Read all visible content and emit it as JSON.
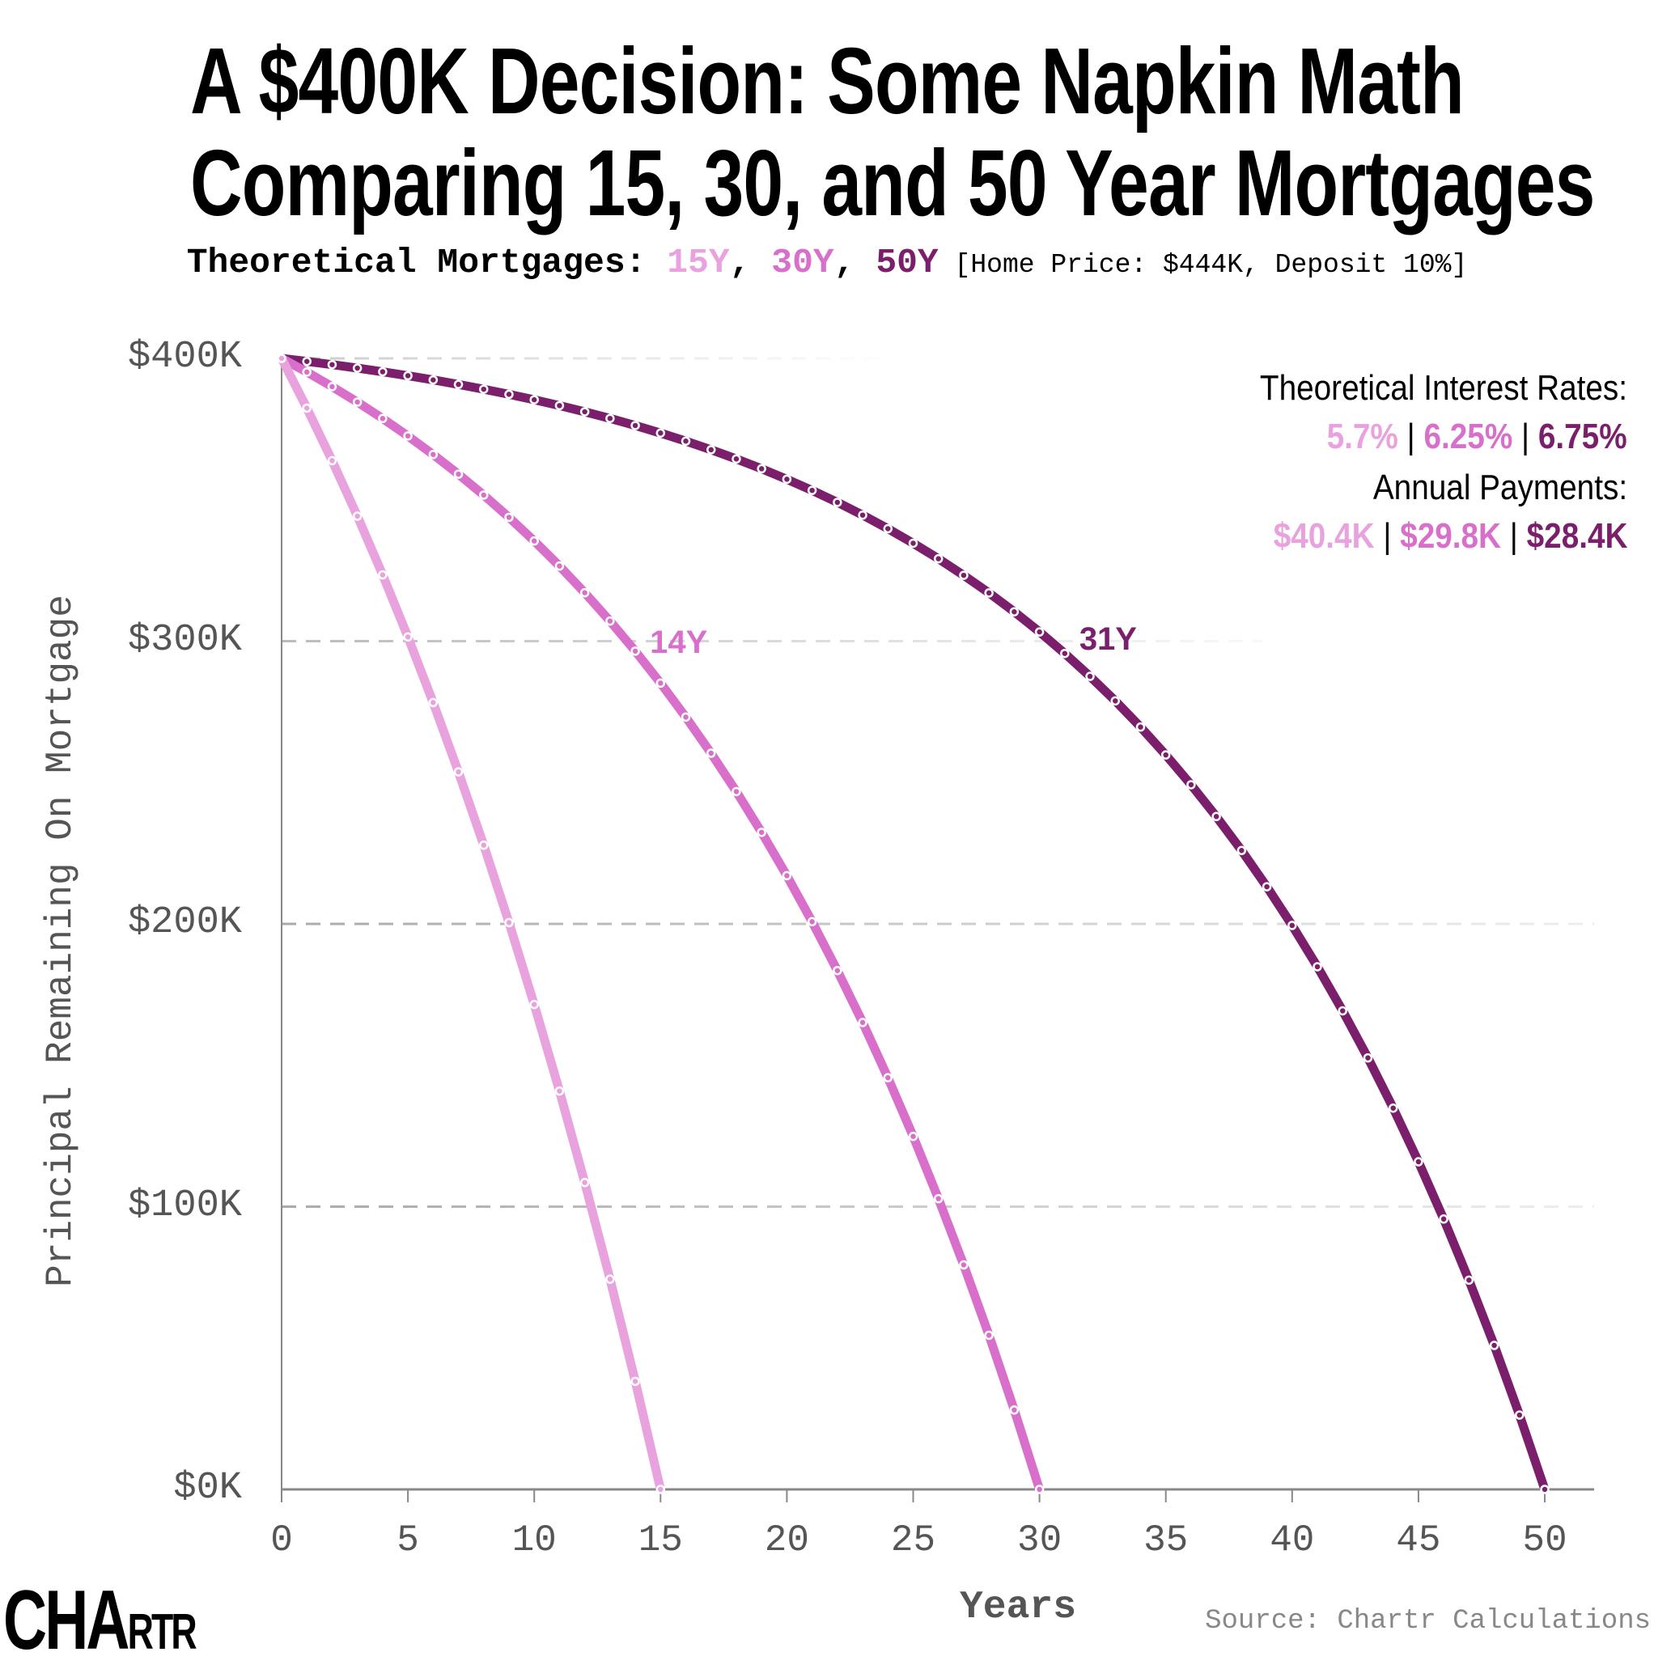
{
  "header": {
    "title_line1": "A $400K Decision: Some Napkin Math",
    "title_line2": "Comparing 15, 30, and 50 Year Mortgages",
    "subtitle_prefix": "Theoretical Mortgages: ",
    "subtitle_15": "15Y",
    "subtitle_sep1": ", ",
    "subtitle_30": "30Y",
    "subtitle_sep2": ", ",
    "subtitle_50": "50Y",
    "subtitle_note": " [Home Price: $444K, Deposit 10%]"
  },
  "legend": {
    "rates_label": "Theoretical Interest Rates:",
    "rates": [
      "5.7%",
      "6.25%",
      "6.75%"
    ],
    "payments_label": "Annual Payments:",
    "payments": [
      "$40.4K",
      "$29.8K",
      "$28.4K"
    ],
    "separator": "|"
  },
  "footer": {
    "source": "Source: Chartr Calculations",
    "logo_text": "CHARTR"
  },
  "chart_data": {
    "type": "line",
    "xlabel": "Years",
    "ylabel": "Principal Remaining On Mortgage",
    "xlim": [
      0,
      52
    ],
    "ylim": [
      0,
      400000
    ],
    "xticks": [
      "0",
      "5",
      "10",
      "15",
      "20",
      "25",
      "30",
      "35",
      "40",
      "45",
      "50"
    ],
    "yticks": [
      "$0K",
      "$100K",
      "$200K",
      "$300K",
      "$400K"
    ],
    "grid": "horizontal dashed",
    "principal": 400000,
    "markers": "yearly",
    "series": [
      {
        "name": "15Y",
        "term_years": 15,
        "rate": 0.057,
        "color": "#e8a2dd"
      },
      {
        "name": "30Y",
        "term_years": 30,
        "rate": 0.0625,
        "color": "#d86fcb"
      },
      {
        "name": "50Y",
        "term_years": 50,
        "rate": 0.0675,
        "color": "#7b1f6c"
      }
    ],
    "annotations": [
      {
        "text": "14Y",
        "x": 14,
        "y": 296000,
        "color": "#d86fcb"
      },
      {
        "text": "31Y",
        "x": 31,
        "y": 296000,
        "color": "#7b1f6c"
      }
    ]
  }
}
